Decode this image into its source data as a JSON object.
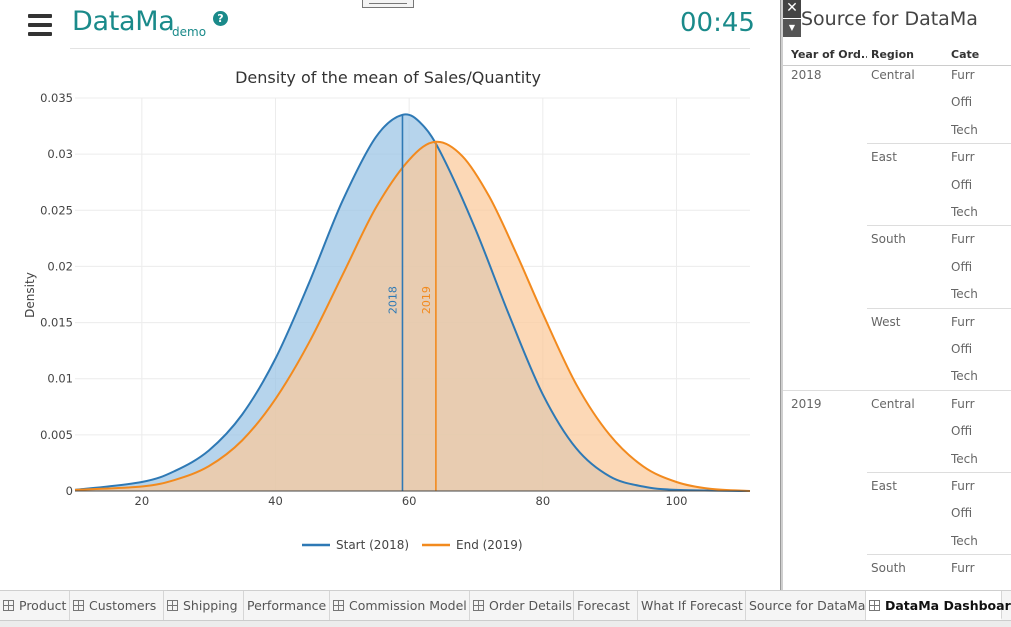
{
  "app": {
    "title": "DataMa",
    "subtitle": "demo",
    "help_glyph": "?",
    "timer": "00:45",
    "accent": "#1a8a8a"
  },
  "chart_data": {
    "type": "area",
    "title": "Density of the mean of Sales/Quantity",
    "xlabel": "",
    "ylabel": "Density",
    "xlim": [
      10,
      111
    ],
    "ylim": [
      0,
      0.035
    ],
    "xticks": [
      "20",
      "40",
      "60",
      "80",
      "100"
    ],
    "yticks": [
      "0",
      "0.005",
      "0.01",
      "0.015",
      "0.02",
      "0.025",
      "0.03",
      "0.035"
    ],
    "grid": true,
    "legend_position": "bottom",
    "series": [
      {
        "name": "Start (2018)",
        "color": "#2e79b5",
        "fill": "#9ec5e6",
        "x": [
          10,
          20,
          25,
          30,
          35,
          40,
          45,
          50,
          55,
          59,
          62,
          65,
          70,
          75,
          80,
          85,
          90,
          95,
          100,
          111
        ],
        "values": [
          0.0001,
          0.0008,
          0.0018,
          0.0036,
          0.0068,
          0.0118,
          0.0185,
          0.0258,
          0.0315,
          0.0335,
          0.0326,
          0.0298,
          0.0232,
          0.0156,
          0.0086,
          0.0038,
          0.0013,
          0.0004,
          0.0001,
          0.0
        ]
      },
      {
        "name": "End (2019)",
        "color": "#f28a1e",
        "fill": "#fbc99a",
        "x": [
          10,
          20,
          25,
          30,
          35,
          40,
          45,
          50,
          55,
          60,
          64,
          68,
          72,
          76,
          80,
          85,
          90,
          95,
          100,
          105,
          111
        ],
        "values": [
          0.0001,
          0.0004,
          0.001,
          0.0022,
          0.0045,
          0.0082,
          0.0132,
          0.0192,
          0.0252,
          0.0295,
          0.0311,
          0.0298,
          0.0262,
          0.0212,
          0.0158,
          0.0095,
          0.005,
          0.0022,
          0.0008,
          0.0002,
          0.0
        ]
      }
    ],
    "annotations": [
      {
        "label": "2018",
        "x": 59,
        "color": "#2e79b5"
      },
      {
        "label": "2019",
        "x": 64,
        "color": "#f28a1e"
      }
    ]
  },
  "side_panel": {
    "title": "Source for DataMa",
    "close_glyph": "✕",
    "dropdown_glyph": "▼",
    "columns": [
      "Year of Ord..",
      "Region",
      "Cate"
    ],
    "rows": [
      {
        "year": "2018",
        "region": "Central",
        "category": "Furr"
      },
      {
        "year": "",
        "region": "",
        "category": "Offi"
      },
      {
        "year": "",
        "region": "",
        "category": "Tech"
      },
      {
        "year": "",
        "region": "East",
        "category": "Furr"
      },
      {
        "year": "",
        "region": "",
        "category": "Offi"
      },
      {
        "year": "",
        "region": "",
        "category": "Tech"
      },
      {
        "year": "",
        "region": "South",
        "category": "Furr"
      },
      {
        "year": "",
        "region": "",
        "category": "Offi"
      },
      {
        "year": "",
        "region": "",
        "category": "Tech"
      },
      {
        "year": "",
        "region": "West",
        "category": "Furr"
      },
      {
        "year": "",
        "region": "",
        "category": "Offi"
      },
      {
        "year": "",
        "region": "",
        "category": "Tech"
      },
      {
        "year": "2019",
        "region": "Central",
        "category": "Furr"
      },
      {
        "year": "",
        "region": "",
        "category": "Offi"
      },
      {
        "year": "",
        "region": "",
        "category": "Tech"
      },
      {
        "year": "",
        "region": "East",
        "category": "Furr"
      },
      {
        "year": "",
        "region": "",
        "category": "Offi"
      },
      {
        "year": "",
        "region": "",
        "category": "Tech"
      },
      {
        "year": "",
        "region": "South",
        "category": "Furr"
      }
    ]
  },
  "tabs": [
    {
      "label": "Product",
      "icon": "grid-icon"
    },
    {
      "label": "Customers",
      "icon": "grid-icon"
    },
    {
      "label": "Shipping",
      "icon": "grid-icon"
    },
    {
      "label": "Performance",
      "icon": ""
    },
    {
      "label": "Commission Model",
      "icon": "grid-icon"
    },
    {
      "label": "Order Details",
      "icon": "grid-icon"
    },
    {
      "label": "Forecast",
      "icon": ""
    },
    {
      "label": "What If Forecast",
      "icon": ""
    },
    {
      "label": "Source for DataMa",
      "icon": ""
    },
    {
      "label": "DataMa Dashboard",
      "icon": "grid-icon",
      "active": true
    }
  ]
}
